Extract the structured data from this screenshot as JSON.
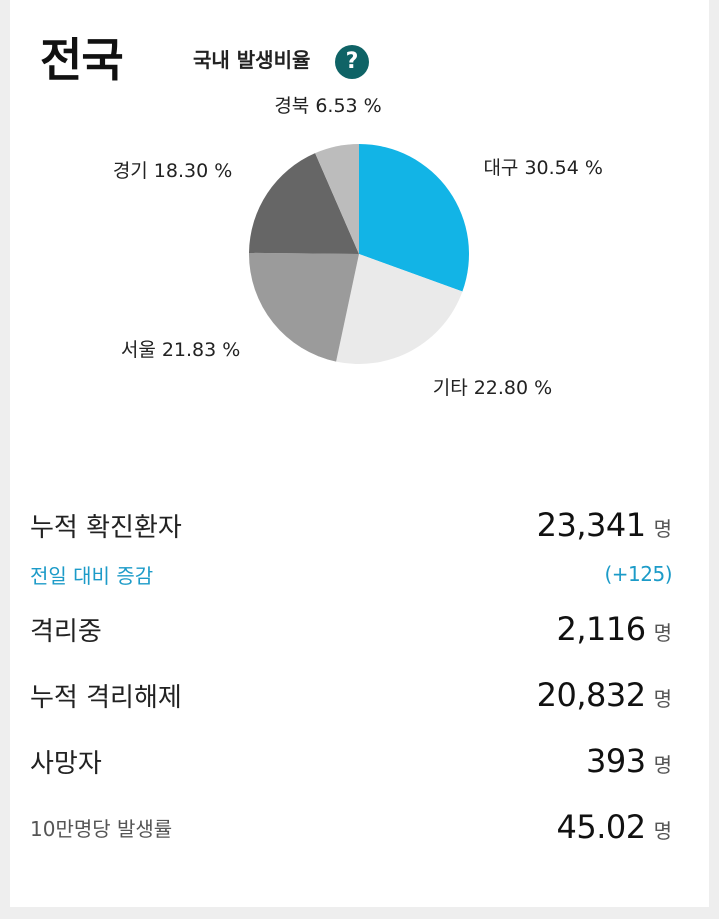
{
  "header": {
    "region": "전국",
    "subtitle": "국내 발생비율",
    "help": "?"
  },
  "chart_data": {
    "type": "pie",
    "title": "국내 발생비율",
    "slices": [
      {
        "name": "대구",
        "value": 30.54,
        "label": "대구 30.54 %",
        "color": "#12b4e6"
      },
      {
        "name": "기타",
        "value": 22.8,
        "label": "기타 22.80 %",
        "color": "#eaeaea"
      },
      {
        "name": "서울",
        "value": 21.83,
        "label": "서울 21.83 %",
        "color": "#9b9b9b"
      },
      {
        "name": "경기",
        "value": 18.3,
        "label": "경기 18.30 %",
        "color": "#666666"
      },
      {
        "name": "경북",
        "value": 6.53,
        "label": "경북 6.53 %",
        "color": "#bcbcbc"
      }
    ]
  },
  "stats": {
    "cumulative": {
      "label": "누적 확진환자",
      "value": "23,341",
      "unit": "명"
    },
    "diff": {
      "label": "전일 대비 증감",
      "value": "(+125)"
    },
    "isolated": {
      "label": "격리중",
      "value": "2,116",
      "unit": "명"
    },
    "released": {
      "label": "누적 격리해제",
      "value": "20,832",
      "unit": "명"
    },
    "deaths": {
      "label": "사망자",
      "value": "393",
      "unit": "명"
    },
    "rate": {
      "label": "10만명당 발생률",
      "value": "45.02",
      "unit": "명"
    }
  }
}
